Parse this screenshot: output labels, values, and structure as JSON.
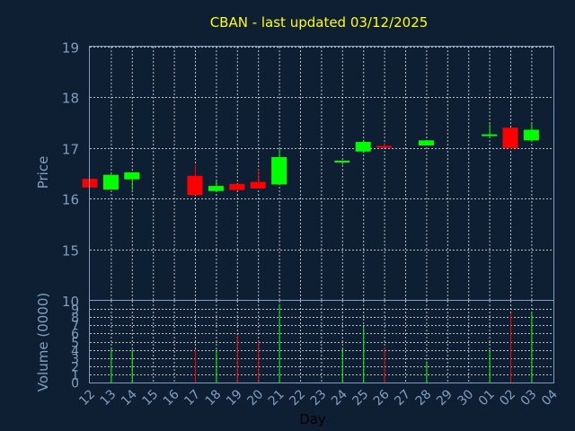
{
  "chart_data": {
    "type": "candlestick",
    "title": "CBAN - last updated 03/12/2025",
    "xlabel": "Day",
    "price_panel": {
      "ylabel": "Price",
      "ylim": [
        14.0,
        19.0
      ],
      "y_ticks": [
        15,
        16,
        17,
        18,
        19
      ],
      "grid": true
    },
    "volume_panel": {
      "ylabel": "Volume (0000)",
      "ylim": [
        0,
        10
      ],
      "y_ticks": [
        0,
        1,
        2,
        3,
        4,
        5,
        6,
        7,
        8,
        9
      ],
      "top_label": "10",
      "grid": true
    },
    "x_ticks": [
      "12",
      "13",
      "14",
      "15",
      "16",
      "17",
      "18",
      "19",
      "20",
      "21",
      "22",
      "23",
      "24",
      "25",
      "26",
      "27",
      "28",
      "29",
      "30",
      "01",
      "02",
      "03",
      "04"
    ],
    "candles": [
      {
        "day": "12",
        "open": 16.39,
        "close": 16.22,
        "high": 16.39,
        "low": 16.22,
        "volume": 0
      },
      {
        "day": "13",
        "open": 16.18,
        "close": 16.47,
        "high": 16.48,
        "low": 16.18,
        "volume": 4.2
      },
      {
        "day": "14",
        "open": 16.38,
        "close": 16.52,
        "high": 16.52,
        "low": 16.17,
        "volume": 4.0
      },
      {
        "day": "17",
        "open": 16.45,
        "close": 16.07,
        "high": 16.67,
        "low": 16.07,
        "volume": 4.1
      },
      {
        "day": "18",
        "open": 16.15,
        "close": 16.25,
        "high": 16.35,
        "low": 16.15,
        "volume": 4.0
      },
      {
        "day": "19",
        "open": 16.29,
        "close": 16.17,
        "high": 16.29,
        "low": 16.17,
        "volume": 5.8
      },
      {
        "day": "20",
        "open": 16.33,
        "close": 16.2,
        "high": 16.58,
        "low": 16.2,
        "volume": 5.1
      },
      {
        "day": "21",
        "open": 16.28,
        "close": 16.82,
        "high": 16.98,
        "low": 16.28,
        "volume": 9.6
      },
      {
        "day": "24",
        "open": 16.73,
        "close": 16.75,
        "high": 16.75,
        "low": 16.67,
        "volume": 4.1
      },
      {
        "day": "25",
        "open": 16.93,
        "close": 17.12,
        "high": 17.16,
        "low": 16.9,
        "volume": 6.7
      },
      {
        "day": "26",
        "open": 17.04,
        "close": 17.01,
        "high": 17.1,
        "low": 17.01,
        "volume": 4.3
      },
      {
        "day": "28",
        "open": 17.05,
        "close": 17.15,
        "high": 17.15,
        "low": 17.05,
        "volume": 2.6
      },
      {
        "day": "01",
        "open": 17.24,
        "close": 17.27,
        "high": 17.47,
        "low": 17.2,
        "volume": 4.0
      },
      {
        "day": "02",
        "open": 17.4,
        "close": 17.0,
        "high": 17.4,
        "low": 16.97,
        "volume": 8.5
      },
      {
        "day": "03",
        "open": 17.15,
        "close": 17.36,
        "high": 17.5,
        "low": 17.12,
        "volume": 8.6
      }
    ]
  },
  "colors": {
    "background": "#0f1f33",
    "title": "#ffff00",
    "axis_text": "#7f9fbf",
    "frame": "#7f9fbf",
    "grid": "#d9d9d9",
    "up": "#00ff00",
    "down": "#ff0000",
    "xlabel": "#000000"
  }
}
